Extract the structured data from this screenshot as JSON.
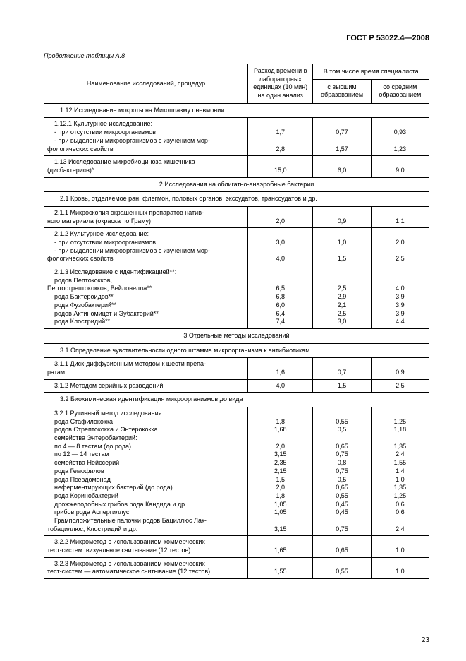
{
  "doc_id": "ГОСТ Р 53022.4—2008",
  "continuation": "Продолжение таблицы А.8",
  "page_number": "23",
  "header": {
    "name": "Наименование исследований, процедур",
    "total": "Расход времени в лабораторных единицах (10 мин) на один анализ",
    "spec_group": "В том числе время специалиста",
    "high": "с высшим образованием",
    "mid": "со средним образованием"
  },
  "rows": [
    {
      "type": "section",
      "text": "1.12  Исследование мокроты на Микоплазму пневмонии"
    },
    {
      "type": "multi",
      "lines": [
        {
          "label": "1.12.1  Культурное исследование:",
          "v": [
            "",
            "",
            ""
          ]
        },
        {
          "label": "- при отсутствии микроорганизмов",
          "v": [
            "1,7",
            "0,77",
            "0,93"
          ]
        },
        {
          "label": "- при выделении микроорганизмов с изучением мор-",
          "v": [
            "",
            "",
            ""
          ]
        },
        {
          "label2": "фологических свойств",
          "v": [
            "2,8",
            "1,57",
            "1,23"
          ]
        }
      ]
    },
    {
      "type": "multi",
      "sep": true,
      "lines": [
        {
          "label": "1.13  Исследование    микробиоциноза    кишечника",
          "v": [
            "",
            "",
            ""
          ]
        },
        {
          "label2": "(дисбактериоз)*",
          "v": [
            "15,0",
            "6,0",
            "9,0"
          ]
        }
      ]
    },
    {
      "type": "section_center",
      "text": "2  Исследования на облигатно-анаэробные бактерии"
    },
    {
      "type": "section",
      "text": "2.1  Кровь, отделяемое ран, флегмон, половых органов, экссудатов, транссудатов и др."
    },
    {
      "type": "multi",
      "lines": [
        {
          "label": "2.1.1  Микроскопия окрашенных препаратов натив-",
          "v": [
            "",
            "",
            ""
          ]
        },
        {
          "label2": "ного материала (окраска по Граму)",
          "v": [
            "2,0",
            "0,9",
            "1,1"
          ]
        }
      ]
    },
    {
      "type": "multi",
      "sep": true,
      "lines": [
        {
          "label": "2.1.2  Культурное исследование:",
          "v": [
            "",
            "",
            ""
          ]
        },
        {
          "label": "- при отсутствии микроорганизмов",
          "v": [
            "3,0",
            "1,0",
            "2,0"
          ]
        },
        {
          "label": "- при выделении микроорганизмов с изучением мор-",
          "v": [
            "",
            "",
            ""
          ]
        },
        {
          "label2": "фологических свойств",
          "v": [
            "4,0",
            "1,5",
            "2,5"
          ]
        }
      ]
    },
    {
      "type": "multi",
      "sep": true,
      "lines": [
        {
          "label": "2.1.3  Исследование с идентификацией**:",
          "v": [
            "",
            "",
            ""
          ]
        },
        {
          "label": "родов Пептококков,",
          "v": [
            "",
            "",
            ""
          ]
        },
        {
          "label2": "Пептострептококков, Вейлонелла**",
          "v": [
            "6,5",
            "2,5",
            "4,0"
          ]
        },
        {
          "label": "рода Бактероидов**",
          "v": [
            "6,8",
            "2,9",
            "3,9"
          ]
        },
        {
          "label": "рода Фузобактерий**",
          "v": [
            "6,0",
            "2,1",
            "3,9"
          ]
        },
        {
          "label": "родов Актиномицет и Эубактерий**",
          "v": [
            "6,4",
            "2,5",
            "3,9"
          ]
        },
        {
          "label": "рода Клостридий**",
          "v": [
            "7,4",
            "3,0",
            "4,4"
          ]
        }
      ]
    },
    {
      "type": "section_center",
      "text": "3  Отдельные методы исследований"
    },
    {
      "type": "section",
      "text": "3.1  Определение чувствительности одного штамма микроорганизма к антибиотикам"
    },
    {
      "type": "multi",
      "lines": [
        {
          "label": "3.1.1  Диск-диффузионным методом к шести препа-",
          "v": [
            "",
            "",
            ""
          ]
        },
        {
          "label2": "ратам",
          "v": [
            "1,6",
            "0,7",
            "0,9"
          ]
        }
      ]
    },
    {
      "type": "multi",
      "sep": true,
      "lines": [
        {
          "label": "3.1.2  Методом серийных разведений",
          "v": [
            "4,0",
            "1,5",
            "2,5"
          ]
        }
      ]
    },
    {
      "type": "section",
      "text": "3.2  Биохимическая идентификация микроорганизмов до вида"
    },
    {
      "type": "multi",
      "lines": [
        {
          "label": "3.2.1  Рутинный метод исследования.",
          "v": [
            "",
            "",
            ""
          ]
        },
        {
          "label": "рода Стафилококка",
          "v": [
            "1,8",
            "0,55",
            "1,25"
          ]
        },
        {
          "label": "родов Стрептококка и Энтерококка",
          "v": [
            "1,68",
            "0,5",
            "1,18"
          ]
        },
        {
          "label": "семейства Энтеробактерий:",
          "v": [
            "",
            "",
            ""
          ]
        },
        {
          "label": "по 4 — 8 тестам (до рода)",
          "v": [
            "2,0",
            "0,65",
            "1,35"
          ]
        },
        {
          "label": "по 12 — 14 тестам",
          "v": [
            "3,15",
            "0,75",
            "2,4"
          ]
        },
        {
          "label": "семейства Нейссерий",
          "v": [
            "2,35",
            "0,8",
            "1,55"
          ]
        },
        {
          "label": "рода Гемофилов",
          "v": [
            "2,15",
            "0,75",
            "1,4"
          ]
        },
        {
          "label": "рода Псевдомонад",
          "v": [
            "1,5",
            "0,5",
            "1,0"
          ]
        },
        {
          "label": "неферментирующих бактерий (до рода)",
          "v": [
            "2,0",
            "0,65",
            "1,35"
          ]
        },
        {
          "label": "рода Коринобактерий",
          "v": [
            "1,8",
            "0,55",
            "1,25"
          ]
        },
        {
          "label": "дрожжеподобных грибов рода Кандида и др.",
          "v": [
            "1,05",
            "0,45",
            "0,6"
          ]
        },
        {
          "label": "грибов рода Аспергиллус",
          "v": [
            "1,05",
            "0,45",
            "0,6"
          ]
        },
        {
          "label": "Грамположительные палочки родов Бациллюс Лак-",
          "v": [
            "",
            "",
            ""
          ]
        },
        {
          "label2": "тобациллюс, Клостридий и др.",
          "v": [
            "3,15",
            "0,75",
            "2,4"
          ]
        }
      ]
    },
    {
      "type": "multi",
      "sep": true,
      "lines": [
        {
          "label": "3.2.2  Микрометод с использованием коммерческих",
          "v": [
            "",
            "",
            ""
          ]
        },
        {
          "label2": "тест-систем: визуальное считывание (12 тестов)",
          "v": [
            "1,65",
            "0,65",
            "1,0"
          ]
        }
      ]
    },
    {
      "type": "multi",
      "sep": true,
      "lines": [
        {
          "label": "3.2.3  Микрометод с использованием коммерческих",
          "v": [
            "",
            "",
            ""
          ]
        },
        {
          "label2": "тест-систем — автоматическое считывание (12 тестов)",
          "v": [
            "1,55",
            "0,55",
            "1,0"
          ]
        }
      ]
    }
  ]
}
